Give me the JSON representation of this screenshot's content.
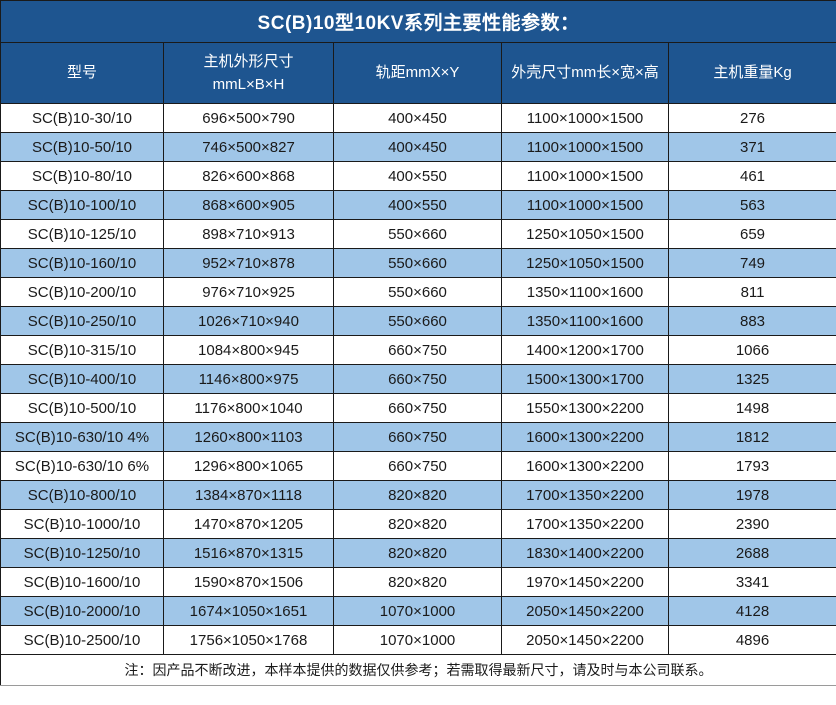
{
  "title": "SC(B)10型10KV系列主要性能参数：",
  "note": "注：因产品不断改进，本样本提供的数据仅供参考；若需取得最新尺寸，请及时与本公司联系。",
  "colors": {
    "header_background": "#1e5590",
    "stripe_row_background": "#a0c6e8",
    "plain_row_background": "#ffffff",
    "header_text": "#ffffff",
    "body_text": "#1a1a1a",
    "border": "#1a1a1a"
  },
  "table": {
    "columns": [
      {
        "label": "型号"
      },
      {
        "label": "主机外形尺寸",
        "sub": "mmL×B×H"
      },
      {
        "label": "轨距mmX×Y"
      },
      {
        "label": "外壳尺寸mm长×宽×高"
      },
      {
        "label": "主机重量Kg"
      }
    ],
    "rows": [
      [
        "SC(B)10-30/10",
        "696×500×790",
        "400×450",
        "1100×1000×1500",
        "276"
      ],
      [
        "SC(B)10-50/10",
        "746×500×827",
        "400×450",
        "1100×1000×1500",
        "371"
      ],
      [
        "SC(B)10-80/10",
        "826×600×868",
        "400×550",
        "1100×1000×1500",
        "461"
      ],
      [
        "SC(B)10-100/10",
        "868×600×905",
        "400×550",
        "1100×1000×1500",
        "563"
      ],
      [
        "SC(B)10-125/10",
        "898×710×913",
        "550×660",
        "1250×1050×1500",
        "659"
      ],
      [
        "SC(B)10-160/10",
        "952×710×878",
        "550×660",
        "1250×1050×1500",
        "749"
      ],
      [
        "SC(B)10-200/10",
        "976×710×925",
        "550×660",
        "1350×1100×1600",
        "811"
      ],
      [
        "SC(B)10-250/10",
        "1026×710×940",
        "550×660",
        "1350×1100×1600",
        "883"
      ],
      [
        "SC(B)10-315/10",
        "1084×800×945",
        "660×750",
        "1400×1200×1700",
        "1066"
      ],
      [
        "SC(B)10-400/10",
        "1146×800×975",
        "660×750",
        "1500×1300×1700",
        "1325"
      ],
      [
        "SC(B)10-500/10",
        "1176×800×1040",
        "660×750",
        "1550×1300×2200",
        "1498"
      ],
      [
        "SC(B)10-630/10 4%",
        "1260×800×1103",
        "660×750",
        "1600×1300×2200",
        "1812"
      ],
      [
        "SC(B)10-630/10 6%",
        "1296×800×1065",
        "660×750",
        "1600×1300×2200",
        "1793"
      ],
      [
        "SC(B)10-800/10",
        "1384×870×1118",
        "820×820",
        "1700×1350×2200",
        "1978"
      ],
      [
        "SC(B)10-1000/10",
        "1470×870×1205",
        "820×820",
        "1700×1350×2200",
        "2390"
      ],
      [
        "SC(B)10-1250/10",
        "1516×870×1315",
        "820×820",
        "1830×1400×2200",
        "2688"
      ],
      [
        "SC(B)10-1600/10",
        "1590×870×1506",
        "820×820",
        "1970×1450×2200",
        "3341"
      ],
      [
        "SC(B)10-2000/10",
        "1674×1050×1651",
        "1070×1000",
        "2050×1450×2200",
        "4128"
      ],
      [
        "SC(B)10-2500/10",
        "1756×1050×1768",
        "1070×1000",
        "2050×1450×2200",
        "4896"
      ]
    ]
  }
}
